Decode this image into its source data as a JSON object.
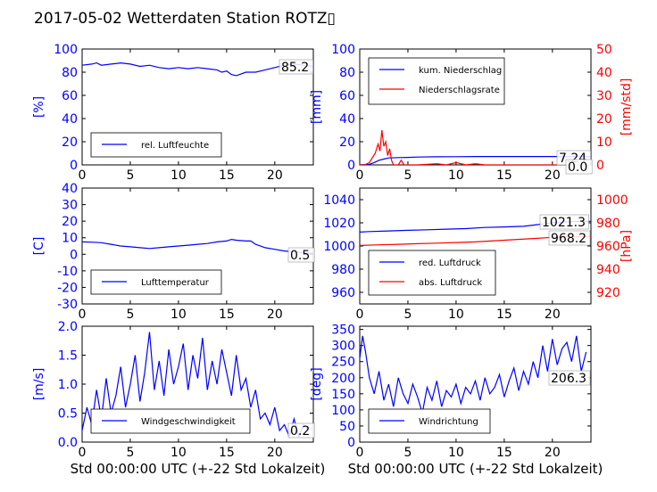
{
  "title": "2017-05-02 Wetterdaten Station ROTZ▯",
  "colors": {
    "primary": "#0000ff",
    "secondary": "#ff0000",
    "axis": "#000000"
  },
  "chart_data": [
    {
      "id": "humidity",
      "type": "line",
      "ylabel": "[%]",
      "xlim": [
        0,
        24
      ],
      "ylim": [
        0,
        100
      ],
      "yticks": [
        0,
        20,
        40,
        60,
        80,
        100
      ],
      "xticks": [
        0,
        5,
        10,
        15,
        20
      ],
      "legend": [
        "rel. Luftfeuchte"
      ],
      "legend_position": "lower-left",
      "annotation": "85.2",
      "series": [
        {
          "name": "rel. Luftfeuchte",
          "color": "#0000ff",
          "x": [
            0,
            1,
            1.5,
            2,
            3,
            4,
            5,
            6,
            7,
            8,
            9,
            10,
            11,
            12,
            13,
            14,
            14.5,
            15,
            15.5,
            16,
            17,
            18,
            19,
            20,
            21,
            22,
            23,
            24
          ],
          "y": [
            86,
            87,
            88,
            86,
            87,
            88,
            87,
            85,
            86,
            84,
            83,
            84,
            83,
            84,
            83,
            82,
            80,
            81,
            78,
            77,
            80,
            80,
            82,
            84,
            86,
            87,
            86,
            85
          ]
        }
      ]
    },
    {
      "id": "precip",
      "type": "line",
      "ylabel": "[mm]",
      "ylabel2": "[mm/std]",
      "xlim": [
        0,
        24
      ],
      "ylim": [
        0,
        100
      ],
      "ylim2": [
        0,
        50
      ],
      "yticks": [
        0,
        20,
        40,
        60,
        80,
        100
      ],
      "yticks2": [
        0,
        10,
        20,
        30,
        40,
        50
      ],
      "xticks": [
        0,
        5,
        10,
        15,
        20
      ],
      "legend": [
        "kum. Niederschlag",
        "Niederschlagsrate"
      ],
      "legend_position": "top-left",
      "annotations": [
        "7.24",
        "0.0"
      ],
      "series": [
        {
          "name": "kum. Niederschlag",
          "color": "#0000ff",
          "x": [
            0,
            1,
            1.5,
            2,
            2.5,
            3,
            4,
            5,
            6,
            8,
            10,
            12,
            15,
            20,
            24
          ],
          "y": [
            0,
            0.5,
            2,
            4,
            5,
            6,
            6.3,
            6.5,
            6.8,
            7,
            7.1,
            7.2,
            7.24,
            7.24,
            7.24
          ]
        },
        {
          "name": "Niederschlagsrate",
          "color": "#ff0000",
          "axis": "secondary",
          "x": [
            0,
            0.5,
            1,
            1.3,
            1.6,
            1.9,
            2.1,
            2.3,
            2.5,
            2.7,
            2.9,
            3.1,
            3.3,
            3.5,
            4,
            4.3,
            4.6,
            5,
            6,
            8,
            9,
            10,
            11,
            12,
            13,
            14,
            24
          ],
          "y": [
            0,
            0,
            1,
            3,
            5,
            9,
            6,
            15,
            8,
            10,
            4,
            7,
            2,
            0,
            0,
            2,
            0,
            0,
            0,
            0.5,
            0,
            1,
            0,
            0.5,
            0,
            0,
            0
          ]
        }
      ]
    },
    {
      "id": "temperature",
      "type": "line",
      "ylabel": "[C]",
      "xlim": [
        0,
        24
      ],
      "ylim": [
        -30,
        40
      ],
      "yticks": [
        -30,
        -20,
        -10,
        0,
        10,
        20,
        30,
        40
      ],
      "xticks": [
        0,
        5,
        10,
        15,
        20
      ],
      "legend": [
        "Lufttemperatur"
      ],
      "legend_position": "lower-left",
      "annotation": "0.5",
      "series": [
        {
          "name": "Lufttemperatur",
          "color": "#0000ff",
          "x": [
            0,
            1,
            2,
            3,
            4,
            5,
            6,
            7,
            8,
            9,
            10,
            11,
            12,
            13,
            14,
            15,
            15.5,
            16,
            17,
            17.5,
            18,
            19,
            20,
            21,
            22,
            23,
            24
          ],
          "y": [
            7.5,
            7.3,
            7,
            6,
            5,
            4.5,
            4,
            3.5,
            4,
            4.5,
            5,
            5.5,
            6,
            6.5,
            7.5,
            8,
            9,
            8.5,
            8,
            8,
            6,
            4,
            3,
            2,
            1.5,
            1,
            0.5
          ]
        }
      ]
    },
    {
      "id": "pressure",
      "type": "line",
      "ylabel2": "[hPa]",
      "xlim": [
        0,
        24
      ],
      "ylim": [
        950,
        1050
      ],
      "ylim2": [
        910,
        1010
      ],
      "yticks": [
        960,
        980,
        1000,
        1020,
        1040
      ],
      "yticks2": [
        920,
        940,
        960,
        980,
        1000
      ],
      "xticks": [
        0,
        5,
        10,
        15,
        20
      ],
      "legend": [
        "red. Luftdruck",
        "abs. Luftdruck"
      ],
      "legend_position": "bottom-left",
      "annotations": [
        "1021.3",
        "968.2"
      ],
      "series": [
        {
          "name": "red. Luftdruck",
          "color": "#0000ff",
          "x": [
            0,
            1,
            3,
            5,
            7,
            9,
            11,
            13,
            15,
            17,
            18,
            19,
            20,
            21,
            22,
            23,
            24
          ],
          "y": [
            1012,
            1012.5,
            1013,
            1013.5,
            1014,
            1014.5,
            1015,
            1016,
            1016.5,
            1017,
            1018,
            1019,
            1020,
            1020.5,
            1021,
            1021.3,
            1021.3
          ]
        },
        {
          "name": "abs. Luftdruck",
          "color": "#ff0000",
          "axis": "secondary",
          "x": [
            0,
            2,
            4,
            6,
            8,
            10,
            12,
            14,
            16,
            18,
            20,
            22,
            24
          ],
          "y": [
            960.5,
            961,
            961.5,
            962,
            962.5,
            963,
            963.5,
            964.5,
            965.5,
            966.5,
            967.5,
            968,
            968.2
          ]
        }
      ]
    },
    {
      "id": "wind_speed",
      "type": "line",
      "ylabel": "[m/s]",
      "xlabel": "Std 00:00:00 UTC (+-22 Std Lokalzeit)",
      "xlim": [
        0,
        24
      ],
      "ylim": [
        0,
        2.0
      ],
      "yticks": [
        0.0,
        0.5,
        1.0,
        1.5,
        2.0
      ],
      "xticks": [
        0,
        5,
        10,
        15,
        20
      ],
      "legend": [
        "Windgeschwindigkeit"
      ],
      "legend_position": "lower-left",
      "annotation": "0.2",
      "series": [
        {
          "name": "Windgeschwindigkeit",
          "color": "#0000ff",
          "x": [
            0,
            0.5,
            1,
            1.5,
            2,
            2.5,
            3,
            3.5,
            4,
            4.5,
            5,
            5.5,
            6,
            6.5,
            7,
            7.5,
            8,
            8.5,
            9,
            9.5,
            10,
            10.5,
            11,
            11.5,
            12,
            12.5,
            13,
            13.5,
            14,
            14.5,
            15,
            15.5,
            16,
            16.5,
            17,
            17.5,
            18,
            18.5,
            19,
            19.5,
            20,
            20.5,
            21,
            21.5,
            22,
            22.5,
            23,
            23.5
          ],
          "y": [
            0.2,
            0.6,
            0.3,
            0.9,
            0.4,
            1.1,
            0.5,
            0.8,
            1.3,
            0.6,
            1.0,
            1.5,
            0.7,
            1.2,
            1.9,
            0.9,
            1.4,
            0.8,
            1.6,
            1.0,
            1.3,
            1.7,
            0.9,
            1.5,
            1.1,
            1.8,
            0.9,
            1.4,
            1.0,
            1.6,
            1.2,
            0.8,
            1.5,
            0.9,
            1.1,
            0.6,
            0.9,
            0.4,
            0.5,
            0.3,
            0.6,
            0.2,
            0.3,
            0.1,
            0.4,
            0.1,
            0.3,
            0.2
          ]
        }
      ]
    },
    {
      "id": "wind_dir",
      "type": "line",
      "ylabel": "[deg]",
      "xlabel": "Std 00:00:00 UTC (+-22 Std Lokalzeit)",
      "xlim": [
        0,
        24
      ],
      "ylim": [
        0,
        360
      ],
      "yticks": [
        0,
        50,
        100,
        150,
        200,
        250,
        300,
        350
      ],
      "xticks": [
        0,
        5,
        10,
        15,
        20
      ],
      "legend": [
        "Windrichtung"
      ],
      "legend_position": "lower-left",
      "annotation": "206.3",
      "series": [
        {
          "name": "Windrichtung",
          "color": "#0000ff",
          "x": [
            0,
            0.3,
            0.6,
            1,
            1.5,
            2,
            2.5,
            3,
            3.5,
            4,
            4.5,
            5,
            5.5,
            6,
            6.5,
            7,
            7.5,
            8,
            8.5,
            9,
            9.5,
            10,
            10.5,
            11,
            11.5,
            12,
            12.5,
            13,
            13.5,
            14,
            14.5,
            15,
            15.5,
            16,
            16.5,
            17,
            17.5,
            18,
            18.5,
            19,
            19.5,
            20,
            20.5,
            21,
            21.5,
            22,
            22.5,
            23,
            23.5
          ],
          "y": [
            260,
            330,
            280,
            200,
            150,
            220,
            130,
            180,
            110,
            200,
            150,
            120,
            180,
            140,
            90,
            170,
            130,
            190,
            110,
            160,
            140,
            180,
            120,
            170,
            150,
            190,
            130,
            200,
            150,
            170,
            210,
            140,
            190,
            230,
            160,
            220,
            180,
            250,
            200,
            300,
            220,
            320,
            240,
            290,
            310,
            250,
            330,
            220,
            280
          ]
        }
      ]
    }
  ]
}
